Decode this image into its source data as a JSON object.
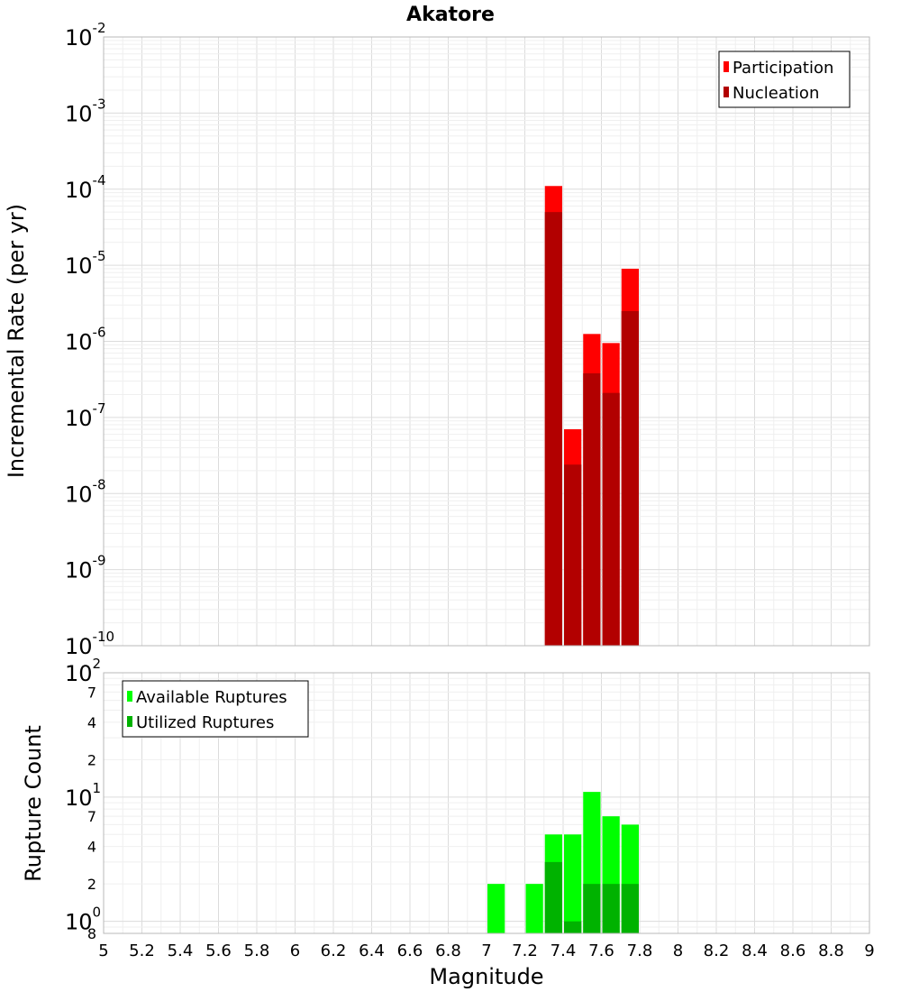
{
  "chart_data": [
    {
      "type": "bar",
      "title": "Akatore",
      "ylabel": "Incremental Rate (per yr)",
      "yscale": "log",
      "xlim": [
        5,
        9
      ],
      "ylim": [
        1e-10,
        0.01
      ],
      "grid": true,
      "bar_width": 0.1,
      "legend_position": "top-right",
      "y_tick_labels": [
        {
          "value": 0.01,
          "base": "10",
          "exp": "-2"
        },
        {
          "value": 0.001,
          "base": "10",
          "exp": "-3"
        },
        {
          "value": 0.0001,
          "base": "10",
          "exp": "-4"
        },
        {
          "value": 1e-05,
          "base": "10",
          "exp": "-5"
        },
        {
          "value": 1e-06,
          "base": "10",
          "exp": "-6"
        },
        {
          "value": 1e-07,
          "base": "10",
          "exp": "-7"
        },
        {
          "value": 1e-08,
          "base": "10",
          "exp": "-8"
        },
        {
          "value": 1e-09,
          "base": "10",
          "exp": "-9"
        },
        {
          "value": 1e-10,
          "base": "10",
          "exp": "-10"
        }
      ],
      "series": [
        {
          "name": "Participation",
          "color": "#ff0000",
          "points": [
            {
              "x": 7.35,
              "y": 0.00011
            },
            {
              "x": 7.45,
              "y": 7e-08
            },
            {
              "x": 7.55,
              "y": 1.25e-06
            },
            {
              "x": 7.65,
              "y": 9.5e-07
            },
            {
              "x": 7.75,
              "y": 9e-06
            }
          ]
        },
        {
          "name": "Nucleation",
          "color": "#b20000",
          "points": [
            {
              "x": 7.35,
              "y": 5e-05
            },
            {
              "x": 7.45,
              "y": 2.4e-08
            },
            {
              "x": 7.55,
              "y": 3.8e-07
            },
            {
              "x": 7.65,
              "y": 2.1e-07
            },
            {
              "x": 7.75,
              "y": 2.5e-06
            }
          ]
        }
      ]
    },
    {
      "type": "bar",
      "xlabel": "Magnitude",
      "ylabel": "Rupture Count",
      "yscale": "log",
      "xlim": [
        5,
        9
      ],
      "ylim": [
        0.8,
        100
      ],
      "grid": true,
      "bar_width": 0.1,
      "legend_position": "top-left",
      "x_ticks": [
        "5",
        "5.2",
        "5.4",
        "5.6",
        "5.8",
        "6",
        "6.2",
        "6.4",
        "6.6",
        "6.8",
        "7",
        "7.2",
        "7.4",
        "7.6",
        "7.8",
        "8",
        "8.2",
        "8.4",
        "8.6",
        "8.8",
        "9"
      ],
      "y_major_ticks": [
        {
          "value": 100,
          "base": "10",
          "exp": "2"
        },
        {
          "value": 10,
          "base": "10",
          "exp": "1"
        },
        {
          "value": 1,
          "base": "10",
          "exp": "0"
        }
      ],
      "y_minor_ticks": [
        {
          "value": 70,
          "label": "7"
        },
        {
          "value": 40,
          "label": "4"
        },
        {
          "value": 20,
          "label": "2"
        },
        {
          "value": 7,
          "label": "7"
        },
        {
          "value": 4,
          "label": "4"
        },
        {
          "value": 2,
          "label": "2"
        },
        {
          "value": 0.8,
          "label": "8"
        }
      ],
      "series": [
        {
          "name": "Available Ruptures",
          "color": "#00ff00",
          "points": [
            {
              "x": 7.05,
              "y": 2
            },
            {
              "x": 7.25,
              "y": 2
            },
            {
              "x": 7.35,
              "y": 5
            },
            {
              "x": 7.45,
              "y": 5
            },
            {
              "x": 7.55,
              "y": 11
            },
            {
              "x": 7.65,
              "y": 7
            },
            {
              "x": 7.75,
              "y": 6
            }
          ]
        },
        {
          "name": "Utilized Ruptures",
          "color": "#00b200",
          "points": [
            {
              "x": 7.35,
              "y": 3
            },
            {
              "x": 7.45,
              "y": 1
            },
            {
              "x": 7.55,
              "y": 2
            },
            {
              "x": 7.65,
              "y": 2
            },
            {
              "x": 7.75,
              "y": 2
            }
          ]
        }
      ]
    }
  ]
}
